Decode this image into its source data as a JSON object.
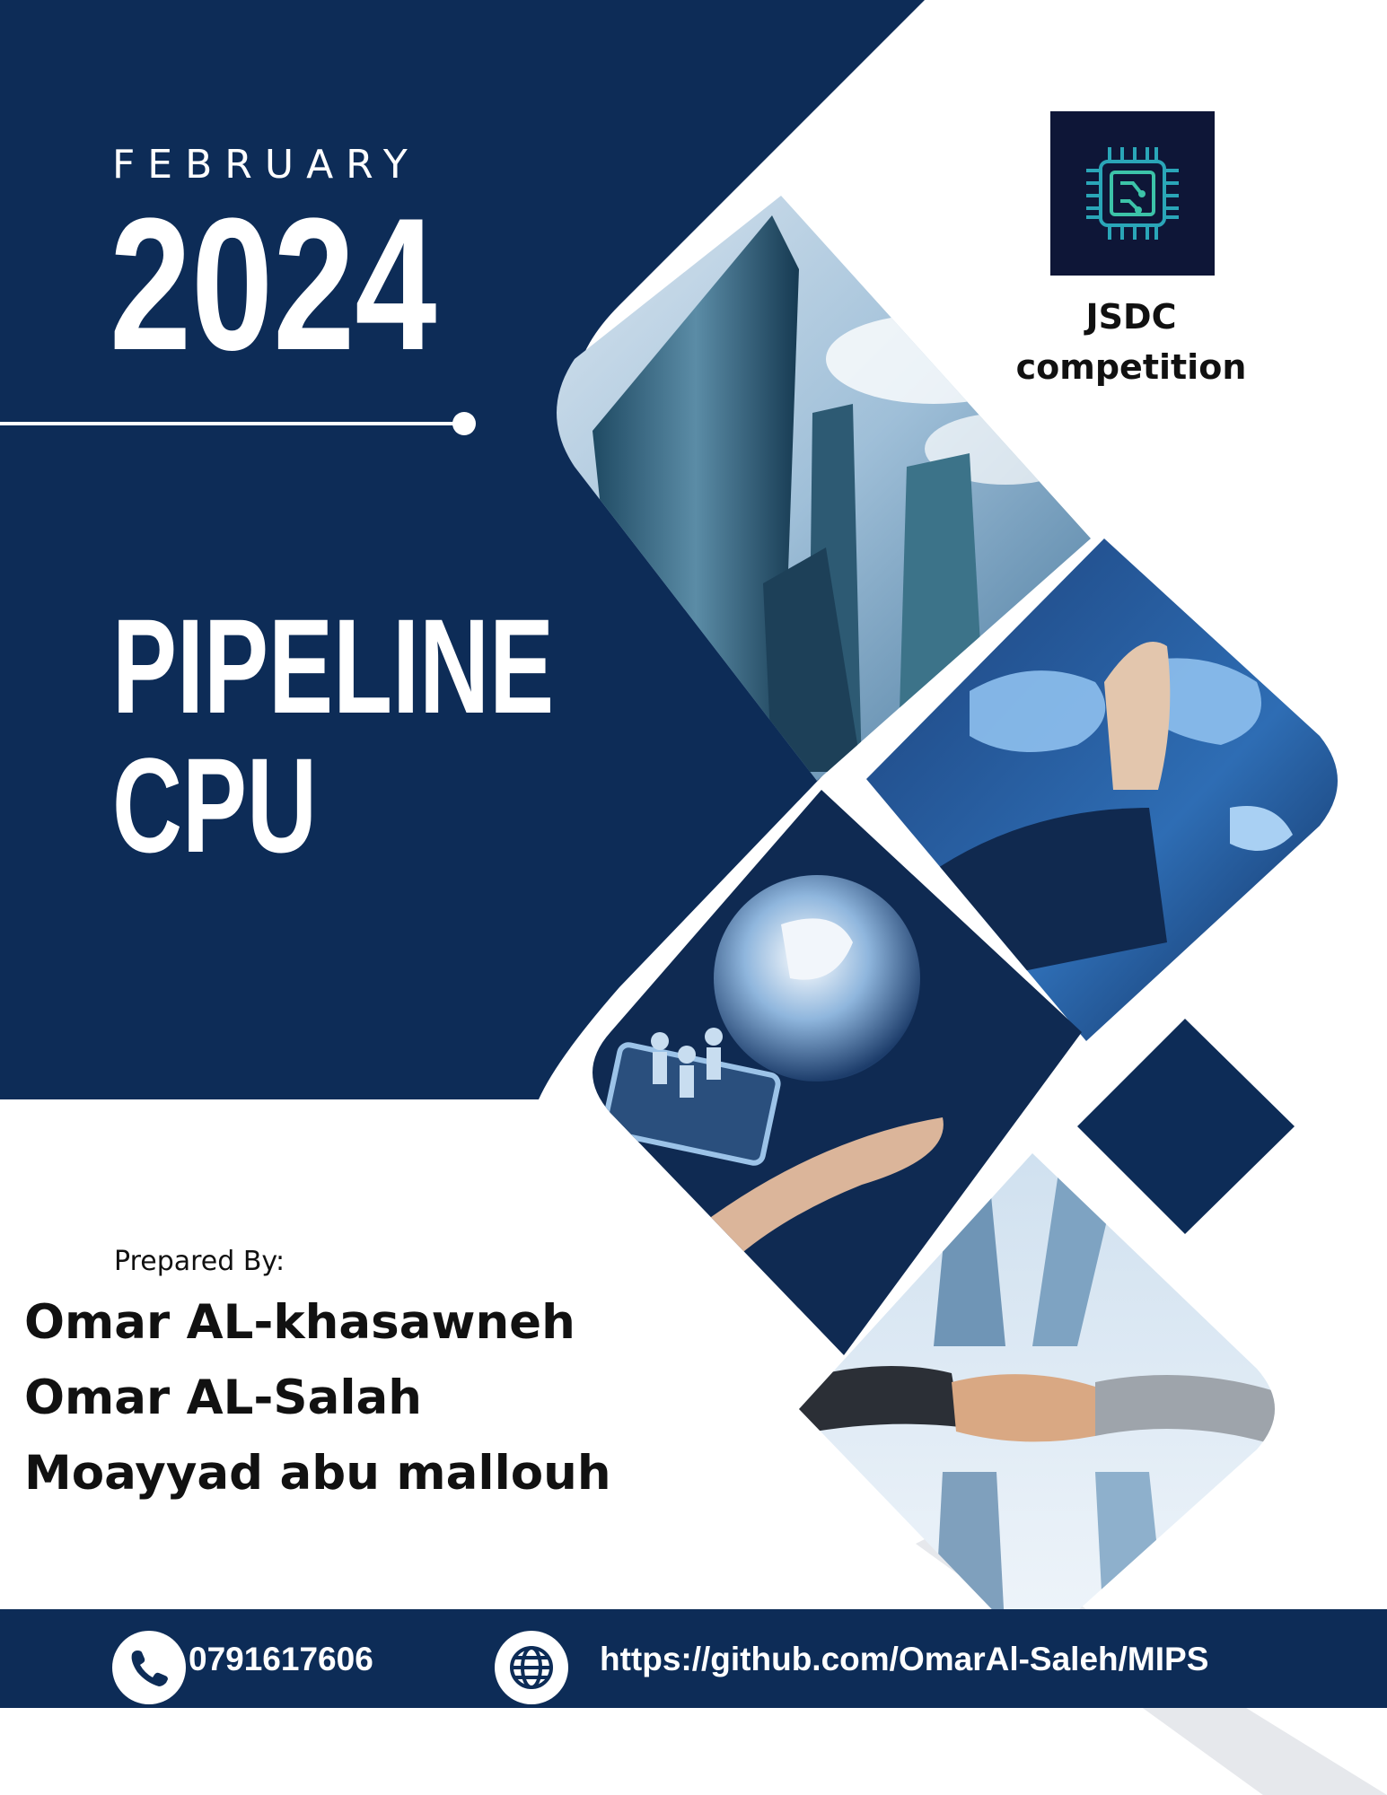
{
  "cover": {
    "month": "FEBRUARY",
    "year": "2024",
    "title_line1": "PIPELINE",
    "title_line2": "CPU"
  },
  "badge": {
    "icon": "cpu-chip-icon",
    "line1": "JSDC",
    "line2": "competition"
  },
  "authors": {
    "label": "Prepared By:",
    "names": [
      "Omar AL-khasawneh",
      "Omar AL-Salah",
      "Moayyad abu mallouh"
    ]
  },
  "footer": {
    "phone_icon": "phone-icon",
    "phone": "0791617606",
    "globe_icon": "globe-icon",
    "url": "https://github.com/OmarAl-Saleh/MIPS"
  },
  "images": {
    "photo1": "skyscrapers-photo",
    "photo2": "world-map-hand-photo",
    "photo3": "globe-hand-photo",
    "photo4": "handshake-photo"
  },
  "colors": {
    "navy": "#0d2c57",
    "badge_bg": "#0e1637",
    "white": "#ffffff"
  }
}
